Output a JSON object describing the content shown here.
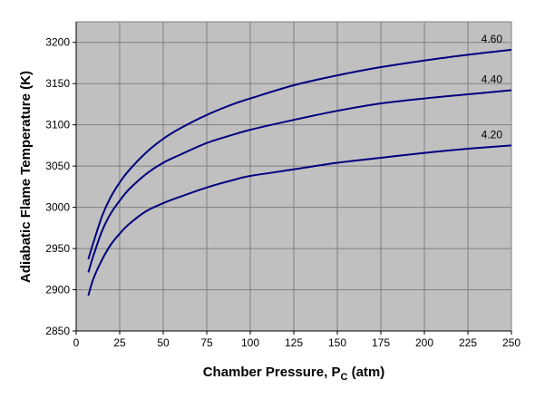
{
  "chart_data": {
    "type": "line",
    "title": "",
    "xlabel": "Chamber Pressure, P",
    "xlabel_subscript": "C",
    "xlabel_suffix": " (atm)",
    "ylabel": "Adiabatic Flame Temperature (K)",
    "xlim": [
      0,
      250
    ],
    "ylim": [
      2850,
      3225
    ],
    "xticks": [
      0,
      25,
      50,
      75,
      100,
      125,
      150,
      175,
      200,
      225,
      250
    ],
    "yticks": [
      2850,
      2900,
      2950,
      3000,
      3050,
      3100,
      3150,
      3200
    ],
    "grid": true,
    "legend": "none",
    "plot_background": "#c0c0c0",
    "line_color": "#000080",
    "series": [
      {
        "name": "4.60",
        "x": [
          7,
          10,
          15,
          20,
          25,
          30,
          40,
          50,
          60,
          75,
          90,
          100,
          125,
          150,
          175,
          200,
          225,
          250
        ],
        "values": [
          2937,
          2958,
          2990,
          3013,
          3030,
          3044,
          3066,
          3083,
          3096,
          3112,
          3125,
          3132,
          3148,
          3160,
          3170,
          3178,
          3185,
          3191
        ]
      },
      {
        "name": "4.40",
        "x": [
          7,
          10,
          15,
          20,
          25,
          30,
          40,
          50,
          60,
          75,
          90,
          100,
          125,
          150,
          175,
          200,
          225,
          250
        ],
        "values": [
          2921,
          2942,
          2972,
          2993,
          3008,
          3021,
          3040,
          3054,
          3064,
          3078,
          3088,
          3094,
          3106,
          3117,
          3126,
          3132,
          3137,
          3142
        ]
      },
      {
        "name": "4.20",
        "x": [
          7,
          10,
          15,
          20,
          25,
          30,
          40,
          50,
          60,
          75,
          90,
          100,
          125,
          150,
          175,
          200,
          225,
          250
        ],
        "values": [
          2893,
          2914,
          2937,
          2955,
          2968,
          2979,
          2995,
          3005,
          3013,
          3024,
          3033,
          3038,
          3046,
          3054,
          3060,
          3066,
          3071,
          3075
        ]
      }
    ]
  }
}
